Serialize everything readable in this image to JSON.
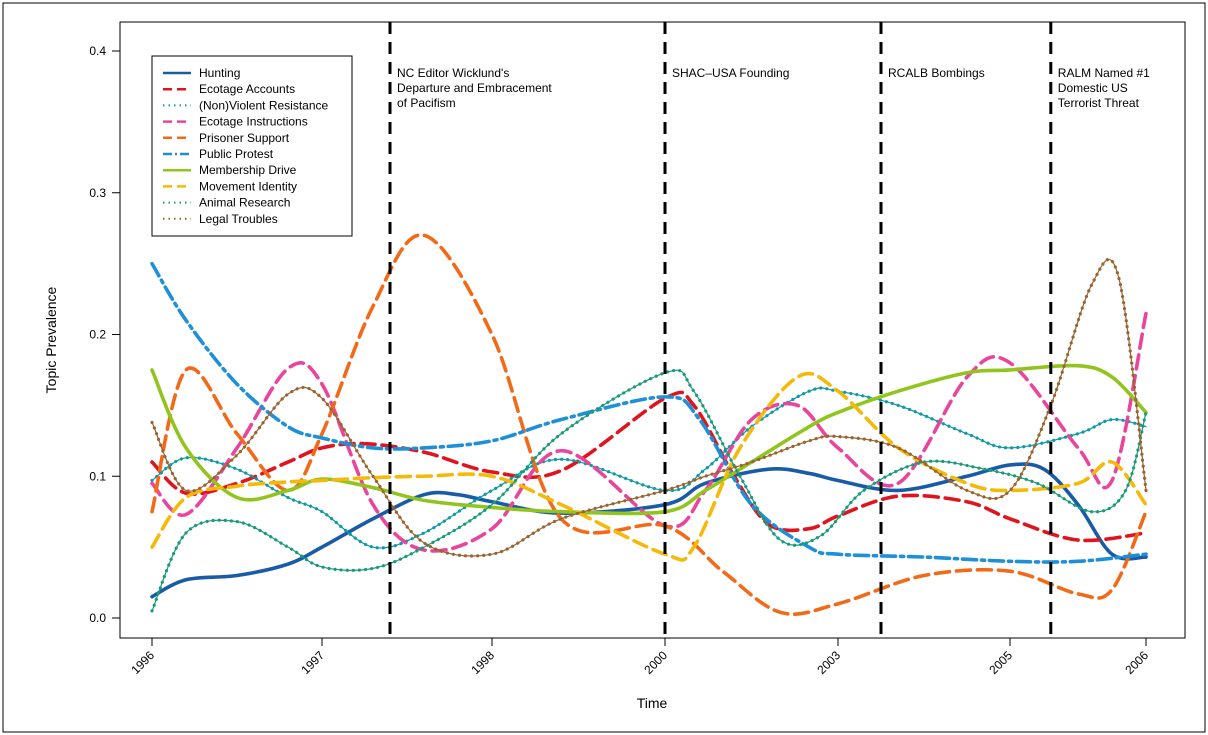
{
  "chart_data": {
    "type": "line",
    "xlabel": "Time",
    "ylabel": "Topic Prevalence",
    "x": [
      1996,
      1997,
      1998,
      2000,
      2003,
      2005,
      2006
    ],
    "x_tick_labels": [
      "1996",
      "1997",
      "1998",
      "2000",
      "2003",
      "2005",
      "2006"
    ],
    "ylim": [
      0,
      0.4
    ],
    "y_ticks": [
      0.0,
      0.1,
      0.2,
      0.3,
      0.4
    ],
    "y_tick_labels": [
      "0.0",
      "0.1",
      "0.2",
      "0.3",
      "0.4"
    ],
    "grid": false,
    "legend_position": "top-left",
    "events": [
      {
        "x": 1997.4,
        "lines": [
          "NC Editor Wicklund's",
          "Departure and Embracement",
          " of Pacifism"
        ]
      },
      {
        "x": 2000,
        "lines": [
          "SHAC–USA Founding"
        ]
      },
      {
        "x": 2003.5,
        "lines": [
          "RCALB Bombings"
        ]
      },
      {
        "x": 2005.3,
        "lines": [
          "RALM Named #1",
          "Domestic US",
          "Terrorist Threat"
        ]
      }
    ],
    "series": [
      {
        "name": "Hunting",
        "color": "#1a5ba8",
        "style": "solid",
        "values": [
          [
            1996,
            0.015
          ],
          [
            1996.2,
            0.027
          ],
          [
            1996.5,
            0.03
          ],
          [
            1996.8,
            0.038
          ],
          [
            1997,
            0.05
          ],
          [
            1997.3,
            0.07
          ],
          [
            1997.6,
            0.087
          ],
          [
            1997.8,
            0.087
          ],
          [
            1998,
            0.082
          ],
          [
            1998.8,
            0.074
          ],
          [
            2000,
            0.08
          ],
          [
            2000.7,
            0.095
          ],
          [
            2001.8,
            0.105
          ],
          [
            2002.5,
            0.102
          ],
          [
            2003,
            0.097
          ],
          [
            2003.7,
            0.09
          ],
          [
            2004.5,
            0.1
          ],
          [
            2005,
            0.108
          ],
          [
            2005.25,
            0.105
          ],
          [
            2005.5,
            0.08
          ],
          [
            2005.75,
            0.045
          ],
          [
            2006,
            0.043
          ]
        ]
      },
      {
        "name": "Ecotage Accounts",
        "color": "#e0141e",
        "style": "dashed",
        "values": [
          [
            1996,
            0.11
          ],
          [
            1996.2,
            0.088
          ],
          [
            1996.5,
            0.095
          ],
          [
            1996.8,
            0.11
          ],
          [
            1997,
            0.12
          ],
          [
            1997.25,
            0.123
          ],
          [
            1997.6,
            0.117
          ],
          [
            1998,
            0.103
          ],
          [
            1998.8,
            0.104
          ],
          [
            2000,
            0.155
          ],
          [
            2000.5,
            0.15
          ],
          [
            2001.2,
            0.1
          ],
          [
            2001.8,
            0.066
          ],
          [
            2002.5,
            0.063
          ],
          [
            2003,
            0.072
          ],
          [
            2003.7,
            0.086
          ],
          [
            2004.5,
            0.082
          ],
          [
            2005,
            0.07
          ],
          [
            2005.5,
            0.055
          ],
          [
            2006,
            0.06
          ]
        ]
      },
      {
        "name": "(Non)Violent Resistance",
        "color": "#0f9aa5",
        "style": "dotted",
        "values": [
          [
            1996,
            0.097
          ],
          [
            1996.2,
            0.113
          ],
          [
            1996.5,
            0.105
          ],
          [
            1996.8,
            0.085
          ],
          [
            1997,
            0.075
          ],
          [
            1997.3,
            0.05
          ],
          [
            1997.6,
            0.06
          ],
          [
            1998,
            0.09
          ],
          [
            1998.8,
            0.112
          ],
          [
            2000,
            0.09
          ],
          [
            2000.7,
            0.105
          ],
          [
            2001.5,
            0.135
          ],
          [
            2002.5,
            0.16
          ],
          [
            2003,
            0.16
          ],
          [
            2003.7,
            0.15
          ],
          [
            2004.5,
            0.13
          ],
          [
            2005,
            0.12
          ],
          [
            2005.5,
            0.13
          ],
          [
            2005.75,
            0.14
          ],
          [
            2006,
            0.135
          ]
        ]
      },
      {
        "name": "Ecotage Instructions",
        "color": "#e8469c",
        "style": "dashed",
        "values": [
          [
            1996,
            0.095
          ],
          [
            1996.2,
            0.073
          ],
          [
            1996.5,
            0.12
          ],
          [
            1996.8,
            0.176
          ],
          [
            1997,
            0.165
          ],
          [
            1997.3,
            0.08
          ],
          [
            1997.6,
            0.048
          ],
          [
            1998,
            0.063
          ],
          [
            1998.8,
            0.118
          ],
          [
            2000,
            0.065
          ],
          [
            2000.7,
            0.09
          ],
          [
            2001.5,
            0.14
          ],
          [
            2002.3,
            0.15
          ],
          [
            2003,
            0.12
          ],
          [
            2003.7,
            0.095
          ],
          [
            2004.5,
            0.17
          ],
          [
            2005,
            0.18
          ],
          [
            2005.5,
            0.12
          ],
          [
            2005.75,
            0.097
          ],
          [
            2006,
            0.215
          ]
        ]
      },
      {
        "name": "Prisoner Support",
        "color": "#f26a18",
        "style": "dashed",
        "values": [
          [
            1996,
            0.075
          ],
          [
            1996.2,
            0.175
          ],
          [
            1996.5,
            0.13
          ],
          [
            1996.8,
            0.09
          ],
          [
            1997,
            0.13
          ],
          [
            1997.3,
            0.22
          ],
          [
            1997.6,
            0.27
          ],
          [
            1998,
            0.2
          ],
          [
            1998.8,
            0.07
          ],
          [
            2000,
            0.065
          ],
          [
            2001,
            0.033
          ],
          [
            2002,
            0.004
          ],
          [
            2003,
            0.01
          ],
          [
            2004,
            0.03
          ],
          [
            2005,
            0.033
          ],
          [
            2005.5,
            0.017
          ],
          [
            2005.75,
            0.02
          ],
          [
            2006,
            0.075
          ]
        ]
      },
      {
        "name": "Public Protest",
        "color": "#1e90d8",
        "style": "dashdot",
        "values": [
          [
            1996,
            0.25
          ],
          [
            1996.2,
            0.21
          ],
          [
            1996.5,
            0.165
          ],
          [
            1996.8,
            0.135
          ],
          [
            1997,
            0.127
          ],
          [
            1997.3,
            0.12
          ],
          [
            1997.6,
            0.12
          ],
          [
            1998,
            0.125
          ],
          [
            1998.8,
            0.14
          ],
          [
            2000,
            0.156
          ],
          [
            2000.6,
            0.14
          ],
          [
            2001.5,
            0.08
          ],
          [
            2002.5,
            0.05
          ],
          [
            2003,
            0.045
          ],
          [
            2004,
            0.043
          ],
          [
            2005,
            0.04
          ],
          [
            2005.5,
            0.04
          ],
          [
            2006,
            0.045
          ]
        ]
      },
      {
        "name": "Membership Drive",
        "color": "#92c41e",
        "style": "solid",
        "values": [
          [
            1996,
            0.175
          ],
          [
            1996.2,
            0.12
          ],
          [
            1996.5,
            0.085
          ],
          [
            1996.8,
            0.09
          ],
          [
            1997,
            0.098
          ],
          [
            1997.3,
            0.092
          ],
          [
            1997.6,
            0.083
          ],
          [
            1998,
            0.078
          ],
          [
            1998.8,
            0.075
          ],
          [
            2000,
            0.075
          ],
          [
            2000.7,
            0.09
          ],
          [
            2001.5,
            0.11
          ],
          [
            2002.5,
            0.135
          ],
          [
            2003,
            0.145
          ],
          [
            2003.7,
            0.16
          ],
          [
            2004.5,
            0.173
          ],
          [
            2005,
            0.175
          ],
          [
            2005.5,
            0.178
          ],
          [
            2005.75,
            0.17
          ],
          [
            2006,
            0.145
          ]
        ]
      },
      {
        "name": "Movement Identity",
        "color": "#f5b90a",
        "style": "dashed",
        "values": [
          [
            1996,
            0.05
          ],
          [
            1996.2,
            0.085
          ],
          [
            1996.5,
            0.093
          ],
          [
            1996.8,
            0.096
          ],
          [
            1997,
            0.097
          ],
          [
            1997.3,
            0.099
          ],
          [
            1997.6,
            0.1
          ],
          [
            1998,
            0.1
          ],
          [
            1998.8,
            0.08
          ],
          [
            2000,
            0.045
          ],
          [
            2000.5,
            0.05
          ],
          [
            2001.3,
            0.12
          ],
          [
            2002.3,
            0.17
          ],
          [
            2003,
            0.16
          ],
          [
            2003.7,
            0.12
          ],
          [
            2004.5,
            0.095
          ],
          [
            2005,
            0.09
          ],
          [
            2005.5,
            0.095
          ],
          [
            2005.75,
            0.11
          ],
          [
            2006,
            0.08
          ]
        ]
      },
      {
        "name": "Animal Research",
        "color": "#1a9a7a",
        "style": "dotted",
        "values": [
          [
            1996,
            0.005
          ],
          [
            1996.2,
            0.06
          ],
          [
            1996.5,
            0.068
          ],
          [
            1996.8,
            0.05
          ],
          [
            1997,
            0.036
          ],
          [
            1997.3,
            0.035
          ],
          [
            1997.6,
            0.05
          ],
          [
            1998,
            0.08
          ],
          [
            1998.8,
            0.13
          ],
          [
            2000,
            0.173
          ],
          [
            2000.5,
            0.16
          ],
          [
            2001.3,
            0.1
          ],
          [
            2002,
            0.055
          ],
          [
            2002.7,
            0.058
          ],
          [
            2003.3,
            0.09
          ],
          [
            2004,
            0.11
          ],
          [
            2004.7,
            0.105
          ],
          [
            2005.2,
            0.095
          ],
          [
            2005.6,
            0.075
          ],
          [
            2005.85,
            0.09
          ],
          [
            2006,
            0.145
          ]
        ]
      },
      {
        "name": "Legal Troubles",
        "color": "#9a6432",
        "style": "dotted",
        "values": [
          [
            1996,
            0.138
          ],
          [
            1996.2,
            0.09
          ],
          [
            1996.5,
            0.115
          ],
          [
            1996.8,
            0.158
          ],
          [
            1997,
            0.155
          ],
          [
            1997.3,
            0.1
          ],
          [
            1997.6,
            0.053
          ],
          [
            1998,
            0.045
          ],
          [
            1998.8,
            0.07
          ],
          [
            2000,
            0.09
          ],
          [
            2000.7,
            0.1
          ],
          [
            2001.5,
            0.11
          ],
          [
            2002.5,
            0.125
          ],
          [
            2003,
            0.128
          ],
          [
            2003.7,
            0.12
          ],
          [
            2004.5,
            0.09
          ],
          [
            2005,
            0.09
          ],
          [
            2005.3,
            0.15
          ],
          [
            2005.6,
            0.235
          ],
          [
            2005.8,
            0.24
          ],
          [
            2006,
            0.09
          ]
        ]
      }
    ]
  }
}
